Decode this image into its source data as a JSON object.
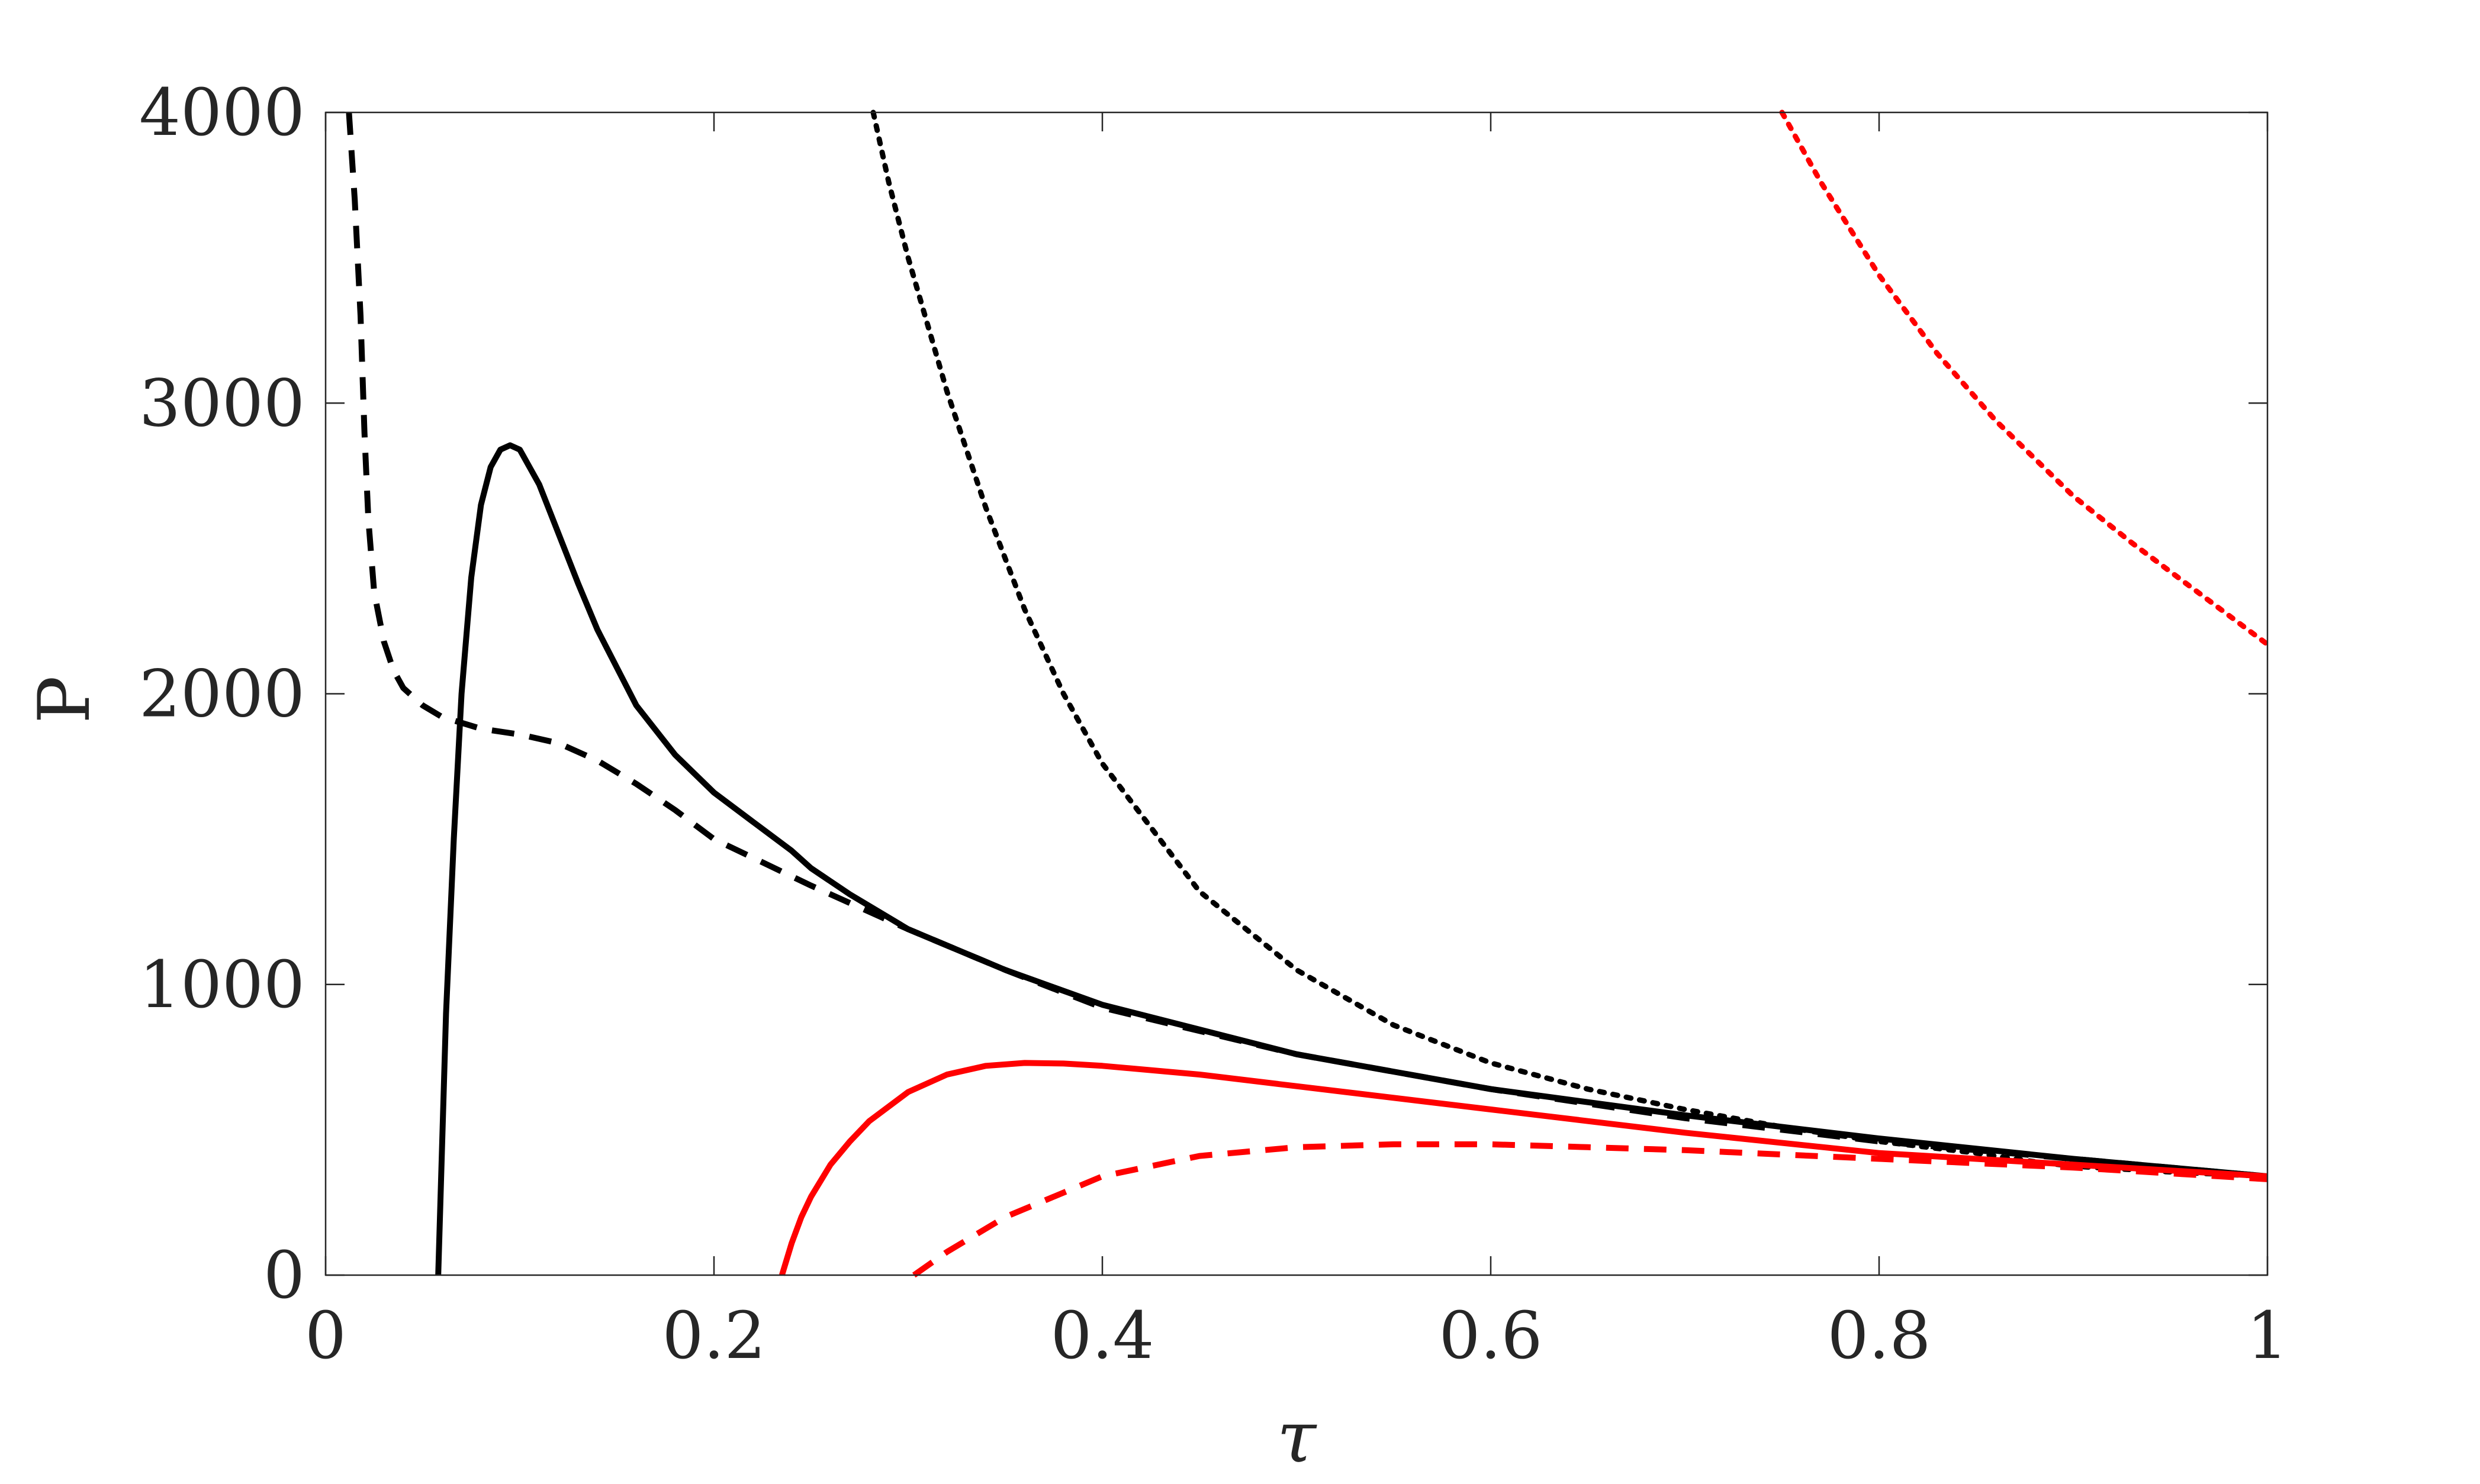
{
  "chart_data": {
    "type": "line",
    "title": "",
    "xlabel": "τ",
    "ylabel": "P",
    "xlim": [
      0,
      1
    ],
    "ylim": [
      0,
      4000
    ],
    "x_ticks": [
      0,
      0.2,
      0.4,
      0.6,
      0.8,
      1
    ],
    "x_tick_labels": [
      "0",
      "0.2",
      "0.4",
      "0.6",
      "0.8",
      "1"
    ],
    "y_ticks": [
      0,
      1000,
      2000,
      3000,
      4000
    ],
    "y_tick_labels": [
      "0",
      "1000",
      "2000",
      "3000",
      "4000"
    ],
    "grid": false,
    "box": true,
    "legend": "none",
    "series": [
      {
        "color": "#000000",
        "style": "solid",
        "x": [
          0.058,
          0.062,
          0.066,
          0.07,
          0.075,
          0.08,
          0.085,
          0.09,
          0.095,
          0.1,
          0.11,
          0.12,
          0.13,
          0.14,
          0.16,
          0.18,
          0.2,
          0.22,
          0.24,
          0.25,
          0.27,
          0.3,
          0.35,
          0.4,
          0.5,
          0.6,
          0.7,
          0.8,
          0.9,
          1.0
        ],
        "y": [
          0,
          900,
          1500,
          2000,
          2400,
          2650,
          2780,
          2840,
          2855,
          2840,
          2720,
          2550,
          2380,
          2220,
          1960,
          1790,
          1660,
          1560,
          1460,
          1400,
          1310,
          1190,
          1050,
          930,
          760,
          640,
          550,
          470,
          400,
          340
        ]
      },
      {
        "color": "#000000",
        "style": "dashed",
        "x": [
          0.012,
          0.015,
          0.018,
          0.02,
          0.022,
          0.025,
          0.03,
          0.035,
          0.04,
          0.05,
          0.06,
          0.07,
          0.08,
          0.1,
          0.12,
          0.14,
          0.16,
          0.18,
          0.2,
          0.25,
          0.3,
          0.35,
          0.4,
          0.5,
          0.6,
          0.7,
          0.8,
          0.9,
          1.0
        ],
        "y": [
          4000,
          3700,
          3300,
          2900,
          2600,
          2350,
          2180,
          2080,
          2020,
          1960,
          1920,
          1900,
          1880,
          1860,
          1830,
          1770,
          1690,
          1600,
          1500,
          1340,
          1190,
          1050,
          920,
          760,
          640,
          540,
          460,
          400,
          340
        ]
      },
      {
        "color": "#000000",
        "style": "dotted",
        "x": [
          0.282,
          0.29,
          0.3,
          0.32,
          0.34,
          0.36,
          0.38,
          0.4,
          0.45,
          0.5,
          0.55,
          0.6,
          0.65,
          0.7,
          0.75,
          0.8,
          0.85,
          0.88,
          0.9,
          0.95,
          1.0
        ],
        "y": [
          4000,
          3760,
          3500,
          3040,
          2640,
          2290,
          2000,
          1760,
          1320,
          1050,
          860,
          730,
          640,
          570,
          510,
          460,
          420,
          390,
          375,
          355,
          340
        ]
      },
      {
        "color": "#ff0000",
        "style": "solid",
        "x": [
          0.235,
          0.24,
          0.245,
          0.25,
          0.26,
          0.27,
          0.28,
          0.3,
          0.32,
          0.34,
          0.36,
          0.38,
          0.4,
          0.45,
          0.5,
          0.6,
          0.7,
          0.8,
          0.9,
          1.0
        ],
        "y": [
          0,
          110,
          200,
          270,
          380,
          460,
          530,
          630,
          690,
          720,
          730,
          728,
          720,
          690,
          650,
          570,
          490,
          420,
          380,
          340
        ]
      },
      {
        "color": "#ff0000",
        "style": "dashed",
        "x": [
          0.303,
          0.32,
          0.35,
          0.4,
          0.45,
          0.5,
          0.55,
          0.6,
          0.65,
          0.7,
          0.8,
          0.9,
          1.0
        ],
        "y": [
          0,
          80,
          200,
          340,
          410,
          440,
          450,
          450,
          440,
          430,
          400,
          370,
          330
        ]
      },
      {
        "color": "#ff0000",
        "style": "dotted",
        "x": [
          0.75,
          0.77,
          0.8,
          0.83,
          0.86,
          0.9,
          0.93,
          0.96,
          1.0
        ],
        "y": [
          4000,
          3760,
          3440,
          3170,
          2940,
          2680,
          2520,
          2370,
          2170
        ]
      }
    ]
  }
}
